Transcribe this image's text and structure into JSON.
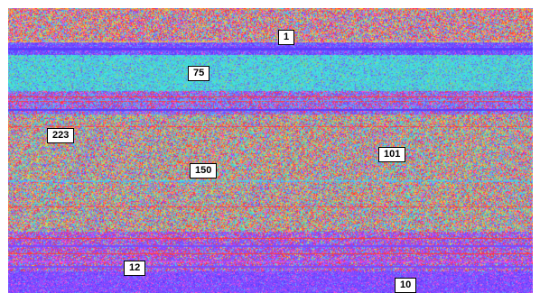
{
  "image": {
    "palette": [
      "#ff3a3a",
      "#ff8a3a",
      "#f5d04a",
      "#42e0e0",
      "#5aa8ff",
      "#7a4bff",
      "#c04bff",
      "#ff4bd2"
    ],
    "background": "#ffffff"
  },
  "regions": [
    {
      "id": "region-1",
      "label": "1"
    },
    {
      "id": "region-75",
      "label": "75"
    },
    {
      "id": "region-223",
      "label": "223"
    },
    {
      "id": "region-150",
      "label": "150"
    },
    {
      "id": "region-101",
      "label": "101"
    },
    {
      "id": "region-12",
      "label": "12"
    },
    {
      "id": "region-10",
      "label": "10"
    }
  ]
}
